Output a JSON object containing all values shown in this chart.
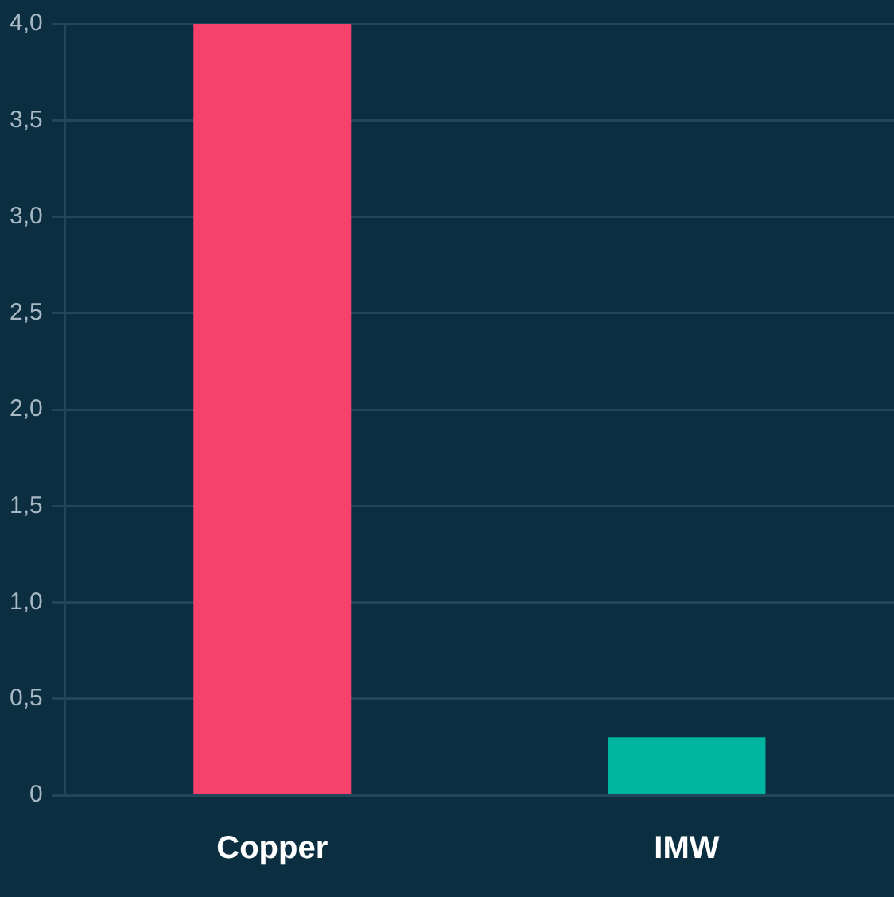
{
  "chart_data": {
    "type": "bar",
    "categories": [
      "Copper",
      "IMW"
    ],
    "values": [
      4.0,
      0.3
    ],
    "colors": [
      "#f5426c",
      "#00b5a0"
    ],
    "ylim": [
      0,
      4
    ],
    "yticks": [
      {
        "value": 0,
        "label": "0"
      },
      {
        "value": 0.5,
        "label": "0,5"
      },
      {
        "value": 1,
        "label": "1,0"
      },
      {
        "value": 1.5,
        "label": "1,5"
      },
      {
        "value": 2,
        "label": "2,0"
      },
      {
        "value": 2.5,
        "label": "2,5"
      },
      {
        "value": 3,
        "label": "3,0"
      },
      {
        "value": 3.5,
        "label": "3,5"
      },
      {
        "value": 4,
        "label": "4,0"
      }
    ],
    "grid": "y",
    "legend": false
  }
}
